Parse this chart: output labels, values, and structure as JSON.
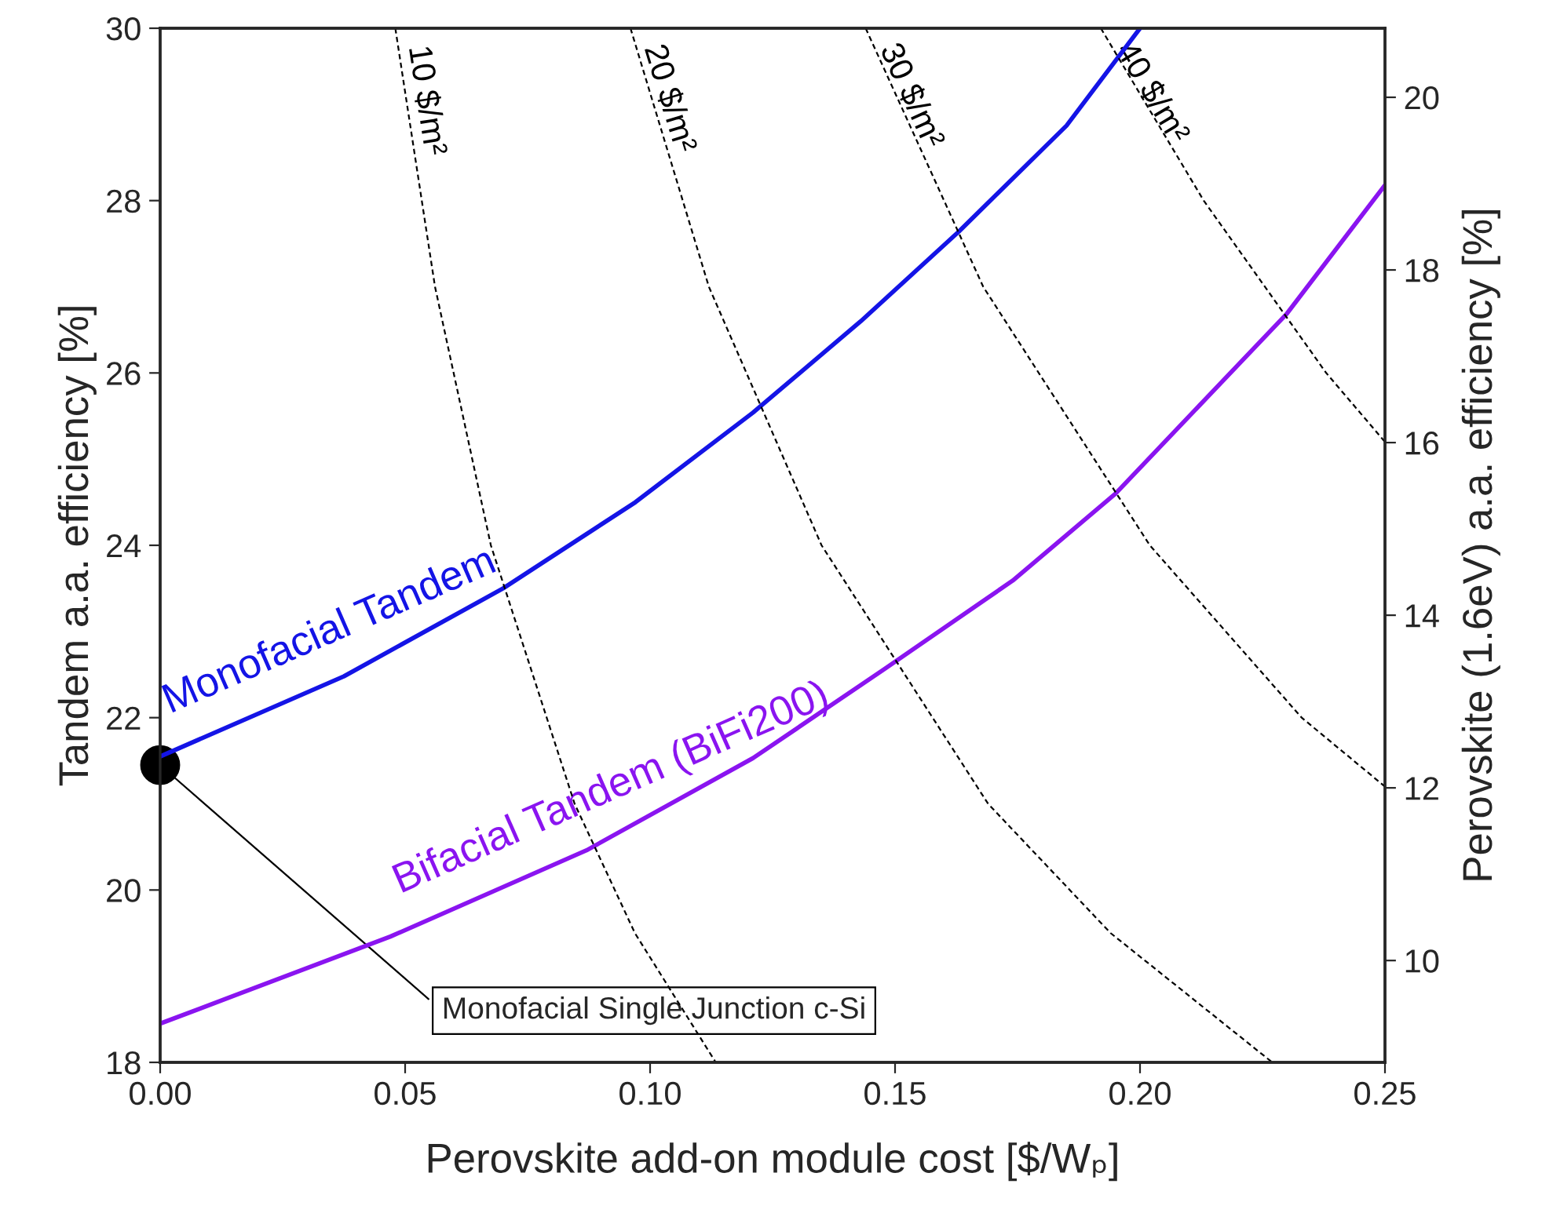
{
  "chart_data": {
    "type": "line",
    "xlabel": "Perovskite add-on module cost [$/Wₚ]",
    "ylabel": "Tandem a.a. efficiency [%]",
    "y2label": "Perovskite (1.6eV) a.a. efficiency [%]",
    "xlim": [
      0,
      0.25
    ],
    "xticks": [
      {
        "value": 0,
        "label": "0.00"
      },
      {
        "value": 0.05,
        "label": "0.05"
      },
      {
        "value": 0.1,
        "label": "0.10"
      },
      {
        "value": 0.15,
        "label": "0.15"
      },
      {
        "value": 0.2,
        "label": "0.20"
      },
      {
        "value": 0.25,
        "label": "0.25"
      }
    ],
    "ylim": [
      18,
      30
    ],
    "yticks": [
      18,
      20,
      22,
      24,
      26,
      28,
      30
    ],
    "y2lim": [
      8.82,
      20.8
    ],
    "y2ticks": [
      10,
      12,
      14,
      16,
      18,
      20
    ],
    "grid": false,
    "legend": false,
    "series": [
      {
        "name": "Monofacial Tandem",
        "color": "#1414e6",
        "line_style": "solid",
        "x": [
          0,
          0.0375,
          0.07,
          0.097,
          0.121,
          0.143,
          0.163,
          0.185,
          0.2
        ],
        "values": [
          21.55,
          22.48,
          23.5,
          24.5,
          25.54,
          26.6,
          27.64,
          28.87,
          30
        ]
      },
      {
        "name": "Bifacial Tandem (BiFi200)",
        "color": "#8a14f0",
        "line_style": "solid",
        "x": [
          0,
          0.047,
          0.087,
          0.121,
          0.148,
          0.174,
          0.195,
          0.23,
          0.25
        ],
        "values": [
          18.45,
          19.46,
          20.46,
          21.53,
          22.57,
          23.59,
          24.6,
          26.69,
          28.18
        ]
      },
      {
        "name": "10 $/m²",
        "color": "#000000",
        "line_style": "dashed",
        "x": [
          0.048,
          0.0561,
          0.0675,
          0.0846,
          0.0969,
          0.1134
        ],
        "values": [
          30,
          27,
          24,
          21,
          19.5,
          18
        ]
      },
      {
        "name": "20 $/m²",
        "color": "#000000",
        "line_style": "dashed",
        "x": [
          0.096,
          0.112,
          0.135,
          0.169,
          0.194,
          0.227
        ],
        "values": [
          30,
          27,
          24,
          21,
          19.5,
          18
        ]
      },
      {
        "name": "30 $/m²",
        "color": "#000000",
        "line_style": "dashed",
        "x": [
          0.144,
          0.168,
          0.202,
          0.233,
          0.25
        ],
        "values": [
          30,
          27,
          24,
          22,
          21.2
        ]
      },
      {
        "name": "40 $/m²",
        "color": "#000000",
        "line_style": "dashed",
        "x": [
          0.192,
          0.213,
          0.238,
          0.25
        ],
        "values": [
          30,
          28,
          26,
          25.2
        ]
      },
      {
        "type": "scatter",
        "color": "#000000",
        "marker": "circle",
        "x": [
          0
        ],
        "values": [
          21.45
        ]
      }
    ],
    "annotations": [
      {
        "text": "Monofacial Single Junction c-Si",
        "x": 0,
        "y": 21.45
      }
    ]
  }
}
